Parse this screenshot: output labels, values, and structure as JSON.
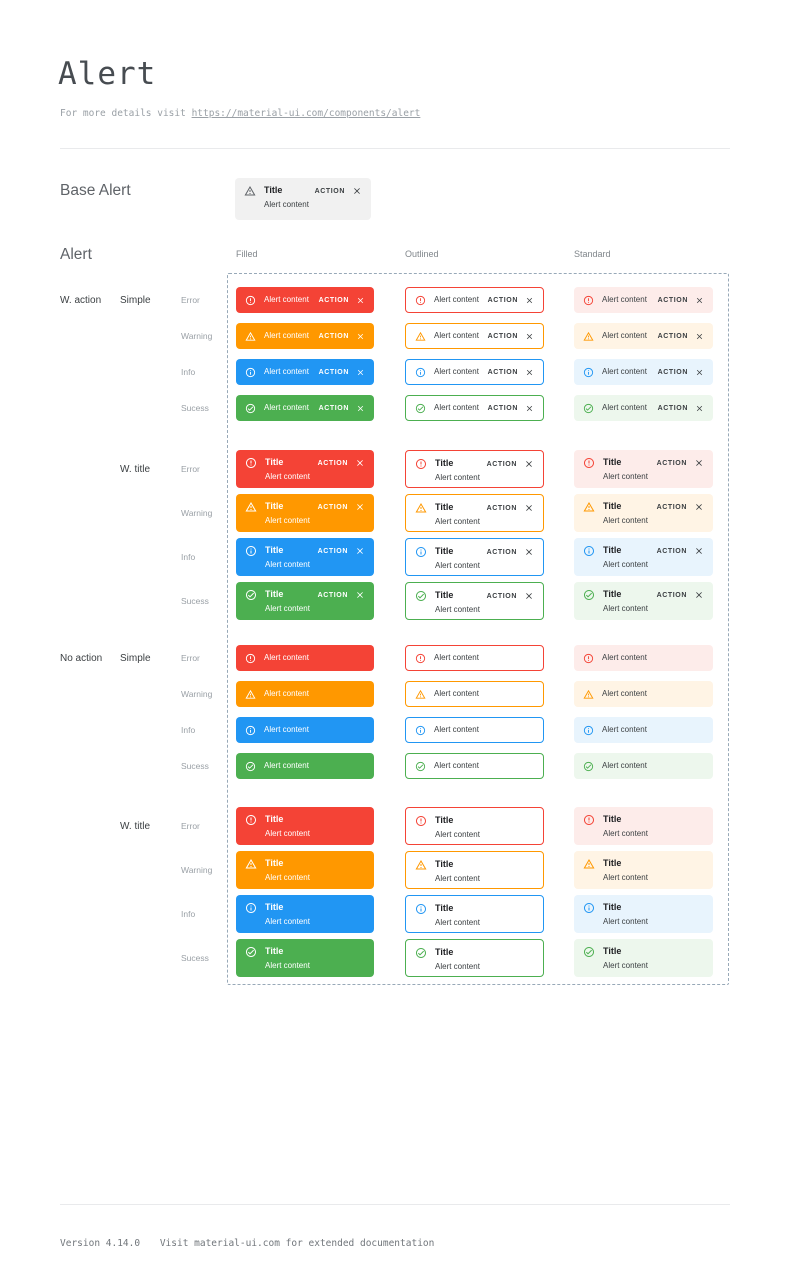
{
  "page": {
    "title": "Alert",
    "subtitle_prefix": "For more details visit",
    "subtitle_link": "https://material-ui.com/components/alert"
  },
  "strings": {
    "title": "Title",
    "content": "Alert content",
    "action": "ACTION"
  },
  "base_alert": {
    "section_label": "Base Alert"
  },
  "matrix": {
    "section_label": "Alert",
    "variants": [
      {
        "key": "filled",
        "label": "Filled"
      },
      {
        "key": "outlined",
        "label": "Outlined"
      },
      {
        "key": "standard",
        "label": "Standard"
      }
    ],
    "groups": [
      {
        "label": "W. action",
        "has_action": true,
        "subgroups": [
          {
            "label": "Simple",
            "has_title": false
          },
          {
            "label": "W. title",
            "has_title": true
          }
        ]
      },
      {
        "label": "No action",
        "has_action": false,
        "subgroups": [
          {
            "label": "Simple",
            "has_title": false
          },
          {
            "label": "W. title",
            "has_title": true
          }
        ]
      }
    ],
    "severities": [
      {
        "key": "error",
        "label": "Error",
        "icon": "error-outline-icon",
        "main": "#f44336",
        "standard_bg": "#fdecea"
      },
      {
        "key": "warning",
        "label": "Warning",
        "icon": "warning-triangle-icon",
        "main": "#ff9800",
        "standard_bg": "#fff4e5"
      },
      {
        "key": "info",
        "label": "Info",
        "icon": "info-outline-icon",
        "main": "#2196f3",
        "standard_bg": "#e8f4fd"
      },
      {
        "key": "success",
        "label": "Sucess",
        "icon": "check-circle-icon",
        "main": "#4caf50",
        "standard_bg": "#edf7ed"
      }
    ]
  },
  "icons": {
    "close": "close-icon",
    "base": "warning-triangle-icon"
  },
  "colors": {
    "dark_text": "#3c4043",
    "title_text": "#202124",
    "filled_text": "#ffffff",
    "dashed_border": "#98a9b8",
    "base_bg": "#f1f1f1",
    "base_icon": "#5f6368"
  },
  "footer": {
    "version": "Version 4.14.0",
    "note": "Visit material-ui.com for extended documentation"
  }
}
